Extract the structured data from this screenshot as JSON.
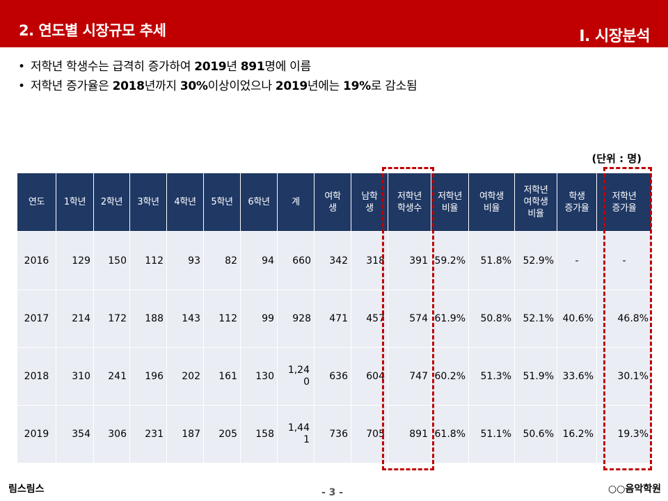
{
  "header": {
    "title": "2. 연도별 시장규모 추세",
    "section": "I. 시장분석"
  },
  "bullets": [
    [
      {
        "t": "저학년 학생수는 급격히 증가하여 ",
        "b": false
      },
      {
        "t": "2019",
        "b": true
      },
      {
        "t": "년 ",
        "b": false
      },
      {
        "t": "891",
        "b": true
      },
      {
        "t": "명에 이름",
        "b": false
      }
    ],
    [
      {
        "t": "저학년 증가율은 ",
        "b": false
      },
      {
        "t": "2018",
        "b": true
      },
      {
        "t": "년까지 ",
        "b": false
      },
      {
        "t": "30%",
        "b": true
      },
      {
        "t": "이상이었으나 ",
        "b": false
      },
      {
        "t": "2019",
        "b": true
      },
      {
        "t": "년에는 ",
        "b": false
      },
      {
        "t": "19%",
        "b": true
      },
      {
        "t": "로  감소됨",
        "b": false
      }
    ]
  ],
  "unit_label": "(단위 : 명)",
  "table": {
    "headers": [
      "연도",
      "1학년",
      "2학년",
      "3학년",
      "4학년",
      "5학년",
      "6학년",
      "계",
      "여학\n생",
      "남학\n생",
      "저학년\n학생수",
      "저학년\n비율",
      "여학생\n비율",
      "저학년\n여학생\n비율",
      "학생\n증가율",
      "저학년\n증가율"
    ],
    "rows": [
      [
        "2016",
        "129",
        "150",
        "112",
        "93",
        "82",
        "94",
        "660",
        "342",
        "318",
        "391",
        "59.2%",
        "51.8%",
        "52.9%",
        "-",
        "-"
      ],
      [
        "2017",
        "214",
        "172",
        "188",
        "143",
        "112",
        "99",
        "928",
        "471",
        "457",
        "574",
        "61.9%",
        "50.8%",
        "52.1%",
        "40.6%",
        "46.8%"
      ],
      [
        "2018",
        "310",
        "241",
        "196",
        "202",
        "161",
        "130",
        "1,240",
        "636",
        "604",
        "747",
        "60.2%",
        "51.3%",
        "51.9%",
        "33.6%",
        "30.1%"
      ],
      [
        "2019",
        "354",
        "306",
        "231",
        "187",
        "205",
        "158",
        "1,441",
        "736",
        "705",
        "891",
        "61.8%",
        "51.1%",
        "50.6%",
        "16.2%",
        "19.3%"
      ]
    ]
  },
  "footer": {
    "left": "림스림스",
    "page": "- 3 -",
    "right": "○○음악학원"
  },
  "colors": {
    "header_bg": "#c00000",
    "table_header_bg": "#1f3864",
    "cell_bg": "#eaedf4",
    "highlight": "#c00000"
  }
}
